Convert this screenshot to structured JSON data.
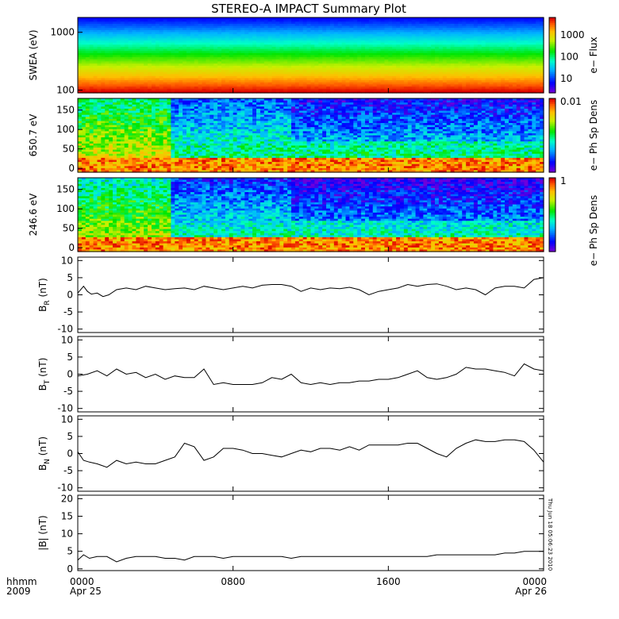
{
  "title": "STEREO-A IMPACT Summary Plot",
  "time_axis": {
    "row_label_1": "hhmm",
    "row_label_2": "2009",
    "ticks": [
      {
        "hour": 0,
        "label": "0000",
        "date": "Apr 25"
      },
      {
        "hour": 8,
        "label": "0800",
        "date": ""
      },
      {
        "hour": 16,
        "label": "1600",
        "date": ""
      },
      {
        "hour": 24,
        "label": "0000",
        "date": "Apr 26"
      }
    ],
    "range_hours": [
      0,
      24
    ]
  },
  "timestamp_text": "Thu Jun 18 05:06:23 2010",
  "spectrograms": [
    {
      "ylabel": "SWEA (eV)",
      "yscale": "log",
      "ylim": [
        90,
        1800
      ],
      "yticks": [
        {
          "v": 1000,
          "label": "1000"
        },
        {
          "v": 100,
          "label": "100"
        }
      ],
      "colorbar_label": "e− Flux",
      "colorbar_scale": "log",
      "colorbar_ticks": [
        "1000",
        "100",
        "10"
      ],
      "colormap": "rainbow",
      "description_bands": "energy-flux bands: red at low energy, yellow, green, cyan, blue at high energy"
    },
    {
      "ylabel": "650.7 eV",
      "yscale": "linear",
      "ylim": [
        -10,
        180
      ],
      "yticks": [
        {
          "v": 150,
          "label": "150"
        },
        {
          "v": 100,
          "label": "100"
        },
        {
          "v": 50,
          "label": "50"
        },
        {
          "v": 0,
          "label": "0"
        }
      ],
      "colorbar_label": "e− Ph Sp Dens",
      "colorbar_ticks": [
        "0.01"
      ],
      "colormap": "rainbow"
    },
    {
      "ylabel": "246.6 eV",
      "yscale": "linear",
      "ylim": [
        -10,
        180
      ],
      "yticks": [
        {
          "v": 150,
          "label": "150"
        },
        {
          "v": 100,
          "label": "100"
        },
        {
          "v": 50,
          "label": "50"
        },
        {
          "v": 0,
          "label": "0"
        }
      ],
      "colorbar_label": "e− Ph Sp Dens",
      "colorbar_ticks": [
        "1"
      ],
      "colormap": "rainbow"
    }
  ],
  "chart_data": [
    {
      "type": "line",
      "name": "BR",
      "ylabel_main": "B",
      "ylabel_sub": "R",
      "ylabel_unit": " (nT)",
      "ylim": [
        -11,
        11
      ],
      "yticks": [
        10,
        5,
        0,
        -5,
        -10
      ],
      "x_hours": [
        0,
        0.3,
        0.5,
        0.7,
        1,
        1.3,
        1.6,
        2,
        2.5,
        3,
        3.5,
        4,
        4.5,
        5,
        5.5,
        6,
        6.5,
        7,
        7.5,
        8,
        8.5,
        9,
        9.5,
        10,
        10.5,
        11,
        11.5,
        12,
        12.5,
        13,
        13.5,
        14,
        14.5,
        15,
        15.5,
        16,
        16.5,
        17,
        17.5,
        18,
        18.5,
        19,
        19.5,
        20,
        20.5,
        21,
        21.5,
        22,
        22.5,
        23,
        23.5,
        24
      ],
      "y": [
        0.5,
        2.5,
        1,
        0.2,
        0.5,
        -0.5,
        0,
        1.5,
        2,
        1.5,
        2.5,
        2,
        1.5,
        1.8,
        2,
        1.5,
        2.5,
        2,
        1.5,
        2,
        2.5,
        2,
        2.8,
        3,
        3,
        2.5,
        1,
        2,
        1.5,
        2,
        1.8,
        2.2,
        1.5,
        0,
        1,
        1.5,
        2,
        3,
        2.5,
        3,
        3.2,
        2.5,
        1.5,
        2,
        1.5,
        0,
        2,
        2.5,
        2.5,
        2,
        4.5,
        5
      ]
    },
    {
      "type": "line",
      "name": "BT",
      "ylabel_main": "B",
      "ylabel_sub": "T",
      "ylabel_unit": " (nT)",
      "ylim": [
        -11,
        11
      ],
      "yticks": [
        10,
        5,
        0,
        -5,
        -10
      ],
      "x_hours": [
        0,
        0.5,
        1,
        1.5,
        2,
        2.5,
        3,
        3.5,
        4,
        4.5,
        5,
        5.5,
        6,
        6.5,
        7,
        7.5,
        8,
        8.5,
        9,
        9.5,
        10,
        10.5,
        11,
        11.5,
        12,
        12.5,
        13,
        13.5,
        14,
        14.5,
        15,
        15.5,
        16,
        16.5,
        17,
        17.5,
        18,
        18.5,
        19,
        19.5,
        20,
        20.5,
        21,
        21.5,
        22,
        22.5,
        23,
        23.5,
        24
      ],
      "y": [
        -0.5,
        0,
        1,
        -0.5,
        1.5,
        0,
        0.5,
        -1,
        0,
        -1.5,
        -0.5,
        -1,
        -1,
        1.5,
        -3,
        -2.5,
        -3,
        -3,
        -3,
        -2.5,
        -1,
        -1.5,
        0,
        -2.5,
        -3,
        -2.5,
        -3,
        -2.5,
        -2.5,
        -2,
        -2,
        -1.5,
        -1.5,
        -1,
        0,
        1,
        -1,
        -1.5,
        -1,
        0,
        2,
        1.5,
        1.5,
        1,
        0.5,
        -0.5,
        3,
        1.5,
        1
      ]
    },
    {
      "type": "line",
      "name": "BN",
      "ylabel_main": "B",
      "ylabel_sub": "N",
      "ylabel_unit": " (nT)",
      "ylim": [
        -11,
        11
      ],
      "yticks": [
        10,
        5,
        0,
        -5,
        -10
      ],
      "x_hours": [
        0,
        0.3,
        0.6,
        1,
        1.5,
        2,
        2.5,
        3,
        3.5,
        4,
        4.5,
        5,
        5.5,
        6,
        6.5,
        7,
        7.5,
        8,
        8.5,
        9,
        9.5,
        10,
        10.5,
        11,
        11.5,
        12,
        12.5,
        13,
        13.5,
        14,
        14.5,
        15,
        15.5,
        16,
        16.5,
        17,
        17.5,
        18,
        18.5,
        19,
        19.5,
        20,
        20.5,
        21,
        21.5,
        22,
        22.5,
        23,
        23.5,
        24
      ],
      "y": [
        0.5,
        -2,
        -2.5,
        -3,
        -4,
        -2,
        -3,
        -2.5,
        -3,
        -3,
        -2,
        -1,
        3,
        2,
        -2,
        -1,
        1.5,
        1.5,
        1,
        0,
        0,
        -0.5,
        -1,
        0,
        1,
        0.5,
        1.5,
        1.5,
        1,
        2,
        1,
        2.5,
        2.5,
        2.5,
        2.5,
        3,
        3,
        1.5,
        0,
        -1,
        1.5,
        3,
        4,
        3.5,
        3.5,
        4,
        4,
        3.5,
        1,
        -2.5
      ]
    },
    {
      "type": "line",
      "name": "|B|",
      "ylabel_main": "|B| (nT)",
      "ylim": [
        -0.5,
        21
      ],
      "yticks": [
        20,
        15,
        10,
        5,
        0
      ],
      "x_hours": [
        0,
        0.3,
        0.6,
        1,
        1.5,
        2,
        2.5,
        3,
        3.5,
        4,
        4.5,
        5,
        5.5,
        6,
        6.5,
        7,
        7.5,
        8,
        8.5,
        9,
        9.5,
        10,
        10.5,
        11,
        11.5,
        12,
        12.5,
        13,
        13.5,
        14,
        14.5,
        15,
        15.5,
        16,
        16.5,
        17,
        17.5,
        18,
        18.5,
        19,
        19.5,
        20,
        20.5,
        21,
        21.5,
        22,
        22.5,
        23,
        23.5,
        24
      ],
      "y": [
        2.5,
        4,
        3,
        3.5,
        3.5,
        2,
        3,
        3.5,
        3.5,
        3.5,
        3,
        3,
        2.5,
        3.5,
        3.5,
        3.5,
        3,
        3.5,
        3.5,
        3.5,
        3.5,
        3.5,
        3.5,
        3,
        3.5,
        3.5,
        3.5,
        3.5,
        3.5,
        3.5,
        3.5,
        3.5,
        3.5,
        3.5,
        3.5,
        3.5,
        3.5,
        3.5,
        4,
        4,
        4,
        4,
        4,
        4,
        4,
        4.5,
        4.5,
        5,
        5,
        5
      ]
    }
  ]
}
